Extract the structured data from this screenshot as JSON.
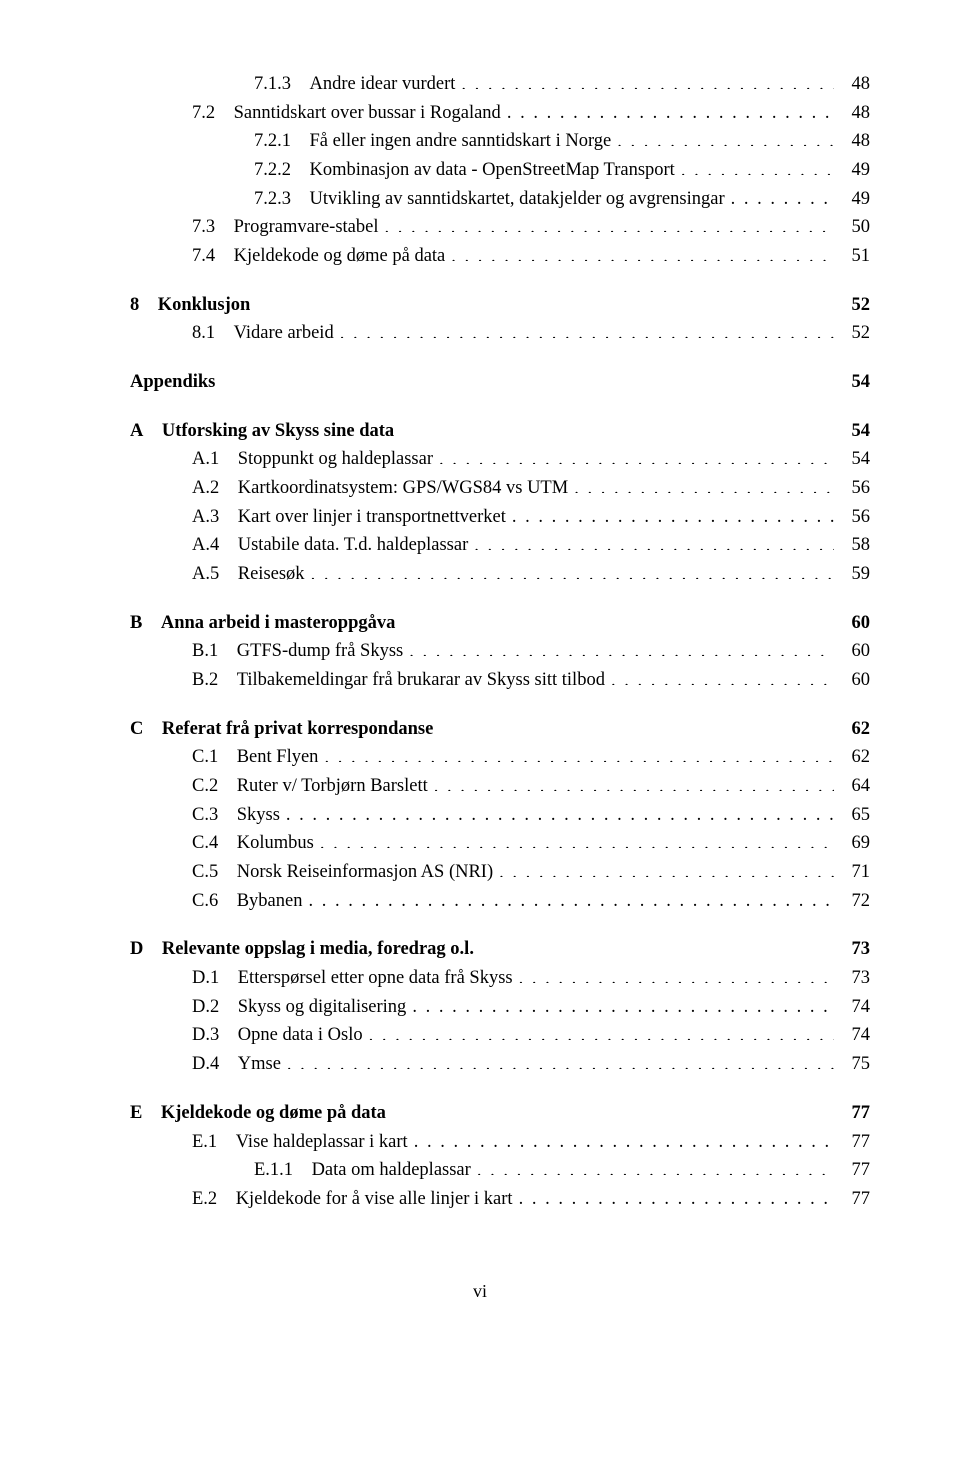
{
  "footer": "vi",
  "orphan": [
    {
      "num": "7.1.3",
      "title": "Andre idear vurdert",
      "page": "48",
      "indent": 3
    },
    {
      "num": "7.2",
      "title": "Sanntidskart over bussar i Rogaland",
      "page": "48",
      "indent": 2
    },
    {
      "num": "7.2.1",
      "title": "Få eller ingen andre sanntidskart i Norge",
      "page": "48",
      "indent": 3
    },
    {
      "num": "7.2.2",
      "title": "Kombinasjon av data - OpenStreetMap Transport",
      "page": "49",
      "indent": 3
    },
    {
      "num": "7.2.3",
      "title": "Utvikling av sanntidskartet, datakjelder og avgrensingar",
      "page": "49",
      "indent": 3
    },
    {
      "num": "7.3",
      "title": "Programvare-stabel",
      "page": "50",
      "indent": 2
    },
    {
      "num": "7.4",
      "title": "Kjeldekode og døme på data",
      "page": "51",
      "indent": 2
    }
  ],
  "sections": [
    {
      "head_num": "8",
      "head_title": "Konklusjon",
      "head_page": "52",
      "items": [
        {
          "num": "8.1",
          "title": "Vidare arbeid",
          "page": "52",
          "indent": 2
        }
      ]
    },
    {
      "head_num": "",
      "head_title": "Appendiks",
      "head_page": "54",
      "items": []
    },
    {
      "head_num": "A",
      "head_title": "Utforsking av Skyss sine data",
      "head_page": "54",
      "items": [
        {
          "num": "A.1",
          "title": "Stoppunkt og haldeplassar",
          "page": "54",
          "indent": 2
        },
        {
          "num": "A.2",
          "title": "Kartkoordinatsystem: GPS/WGS84 vs UTM",
          "page": "56",
          "indent": 2
        },
        {
          "num": "A.3",
          "title": "Kart over linjer i transportnettverket",
          "page": "56",
          "indent": 2
        },
        {
          "num": "A.4",
          "title": "Ustabile data. T.d. haldeplassar",
          "page": "58",
          "indent": 2
        },
        {
          "num": "A.5",
          "title": "Reisesøk",
          "page": "59",
          "indent": 2
        }
      ]
    },
    {
      "head_num": "B",
      "head_title": "Anna arbeid i masteroppgåva",
      "head_page": "60",
      "items": [
        {
          "num": "B.1",
          "title": "GTFS-dump frå Skyss",
          "page": "60",
          "indent": 2
        },
        {
          "num": "B.2",
          "title": "Tilbakemeldingar frå brukarar av Skyss sitt tilbod",
          "page": "60",
          "indent": 2
        }
      ]
    },
    {
      "head_num": "C",
      "head_title": "Referat frå privat korrespondanse",
      "head_page": "62",
      "items": [
        {
          "num": "C.1",
          "title": "Bent Flyen",
          "page": "62",
          "indent": 2
        },
        {
          "num": "C.2",
          "title": "Ruter v/ Torbjørn Barslett",
          "page": "64",
          "indent": 2
        },
        {
          "num": "C.3",
          "title": "Skyss",
          "page": "65",
          "indent": 2
        },
        {
          "num": "C.4",
          "title": "Kolumbus",
          "page": "69",
          "indent": 2
        },
        {
          "num": "C.5",
          "title": "Norsk Reiseinformasjon AS (NRI)",
          "page": "71",
          "indent": 2
        },
        {
          "num": "C.6",
          "title": "Bybanen",
          "page": "72",
          "indent": 2
        }
      ]
    },
    {
      "head_num": "D",
      "head_title": "Relevante oppslag i media, foredrag o.l.",
      "head_page": "73",
      "items": [
        {
          "num": "D.1",
          "title": "Etterspørsel etter opne data frå Skyss",
          "page": "73",
          "indent": 2
        },
        {
          "num": "D.2",
          "title": "Skyss og digitalisering",
          "page": "74",
          "indent": 2
        },
        {
          "num": "D.3",
          "title": "Opne data i Oslo",
          "page": "74",
          "indent": 2
        },
        {
          "num": "D.4",
          "title": "Ymse",
          "page": "75",
          "indent": 2
        }
      ]
    },
    {
      "head_num": "E",
      "head_title": "Kjeldekode og døme på data",
      "head_page": "77",
      "items": [
        {
          "num": "E.1",
          "title": "Vise haldeplassar i kart",
          "page": "77",
          "indent": 2
        },
        {
          "num": "E.1.1",
          "title": "Data om haldeplassar",
          "page": "77",
          "indent": 3
        },
        {
          "num": "E.2",
          "title": "Kjeldekode for å vise alle linjer i kart",
          "page": "77",
          "indent": 2
        }
      ]
    }
  ]
}
